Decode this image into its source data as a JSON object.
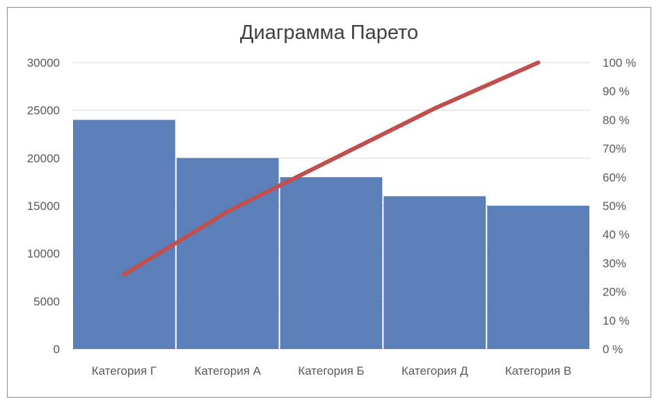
{
  "chart_data": {
    "type": "bar",
    "title": "Диаграмма Парето",
    "categories": [
      "Категория Г",
      "Категория А",
      "Категория Б",
      "Категория Д",
      "Категория В"
    ],
    "series": [
      {
        "type": "bar",
        "values": [
          24000,
          20000,
          18000,
          16000,
          15000
        ],
        "color": "#5b7fb9"
      },
      {
        "type": "line",
        "axis": "right",
        "values": [
          26,
          48,
          66,
          84,
          100
        ],
        "color": "#c0504d"
      }
    ],
    "y_left": {
      "min": 0,
      "max": 30000,
      "ticks": [
        "0",
        "5000",
        "10000",
        "15000",
        "20000",
        "25000",
        "30000"
      ]
    },
    "y_right": {
      "min": 0,
      "max": 100,
      "ticks": [
        "0 %",
        "10 %",
        "20%",
        "30%",
        "40 %",
        "50%",
        "60%",
        "70%",
        "80 %",
        "90 %",
        "100 %"
      ]
    },
    "grid": true,
    "legend": "none"
  }
}
